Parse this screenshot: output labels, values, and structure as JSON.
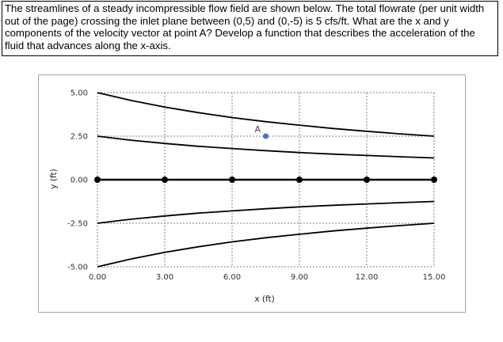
{
  "question": {
    "text": "The streamlines of a steady incompressible flow field are shown below.  The total flowrate (per unit width out of the page) crossing the inlet plane between (0,5) and (0,-5) is 5 cfs/ft.  What are the x and y components of the velocity vector at point A? Develop a function that describes the acceleration of the fluid that advances along the x-axis."
  },
  "chart_data": {
    "type": "line",
    "title": "",
    "xlabel": "x (ft)",
    "ylabel": "y (ft)",
    "xlim": [
      0,
      15
    ],
    "ylim": [
      -5,
      5
    ],
    "x_ticks": [
      "0.00",
      "3.00",
      "6.00",
      "9.00",
      "12.00",
      "15.00"
    ],
    "y_ticks": [
      "5.00",
      "2.50",
      "0.00",
      "-2.50",
      "-5.00"
    ],
    "grid": "dashed vertical and horizontal at tick positions",
    "colors": {
      "line": "#000000",
      "point_a": "#4472c4",
      "grid": "#7f7f7f"
    },
    "series": [
      {
        "x": [
          0,
          1.5,
          3,
          4.5,
          6,
          7.5,
          9,
          10.5,
          12,
          13.5,
          15
        ],
        "y": [
          5.0,
          4.55,
          4.17,
          3.85,
          3.57,
          3.33,
          3.13,
          2.94,
          2.78,
          2.63,
          2.5
        ]
      },
      {
        "x": [
          0,
          1.5,
          3,
          4.5,
          6,
          7.5,
          9,
          10.5,
          12,
          13.5,
          15
        ],
        "y": [
          2.5,
          2.27,
          2.08,
          1.92,
          1.79,
          1.67,
          1.56,
          1.47,
          1.39,
          1.32,
          1.25
        ]
      },
      {
        "x": [
          0,
          3,
          6,
          9,
          12,
          15
        ],
        "y": [
          0,
          0,
          0,
          0,
          0,
          0
        ],
        "markers": true
      },
      {
        "x": [
          0,
          1.5,
          3,
          4.5,
          6,
          7.5,
          9,
          10.5,
          12,
          13.5,
          15
        ],
        "y": [
          -2.5,
          -2.27,
          -2.08,
          -1.92,
          -1.79,
          -1.67,
          -1.56,
          -1.47,
          -1.39,
          -1.32,
          -1.25
        ]
      },
      {
        "x": [
          0,
          1.5,
          3,
          4.5,
          6,
          7.5,
          9,
          10.5,
          12,
          13.5,
          15
        ],
        "y": [
          -5.0,
          -4.55,
          -4.17,
          -3.85,
          -3.57,
          -3.33,
          -3.13,
          -2.94,
          -2.78,
          -2.63,
          -2.5
        ]
      }
    ],
    "point_a": {
      "label": "A",
      "x": 7.5,
      "y": 2.5
    }
  }
}
